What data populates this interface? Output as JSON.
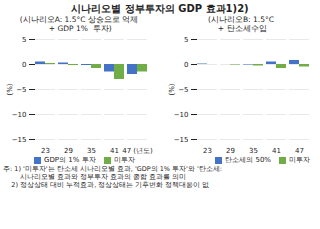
{
  "title": "시나리오별 정부투자의 GDP 효과1)2)",
  "annotations": [
    "주: 1) '미투자'는 탄소세 시나리오별 효과, 'GDP의 1% 투자'와 '탄소세:",
    "        시나리오별 효과와 정부투자 효과의 종합 효과를 의미",
    "    2) 정상상태 대비 누적효과, 정상상태는 기후변화 정책대응이 없"
  ],
  "chart_data": [
    {
      "type": "bar",
      "subtitle": [
        "(시나리오A: 1.5°C 상승으로 억제",
        " + GDP 1%  투자)"
      ],
      "categories": [
        "23",
        "29",
        "35",
        "41",
        "47 (년도)"
      ],
      "series": [
        {
          "name": "GDP의 1% 투자",
          "color": "#4472C4",
          "values": [
            0.5,
            0.3,
            -0.2,
            -1.5,
            -2.0
          ]
        },
        {
          "name": "미투자",
          "color": "#70AD47",
          "values": [
            0.2,
            -0.2,
            -0.8,
            -3.0,
            -1.5
          ]
        }
      ],
      "ylabel": "(%)",
      "ylim": [
        -15,
        5
      ],
      "yticks": [
        -15,
        -10,
        -5,
        0,
        5
      ],
      "grid": true,
      "legend": "lower left"
    },
    {
      "type": "bar",
      "subtitle": [
        "(시나리오B: 1.5°C",
        " + 탄소세수입"
      ],
      "categories": [
        "23",
        "29",
        "35",
        "41",
        "47"
      ],
      "series": [
        {
          "name": "탄소세의 50%",
          "color": "#4472C4",
          "values": [
            0.1,
            0.0,
            -0.1,
            0.5,
            0.8
          ]
        },
        {
          "name": "미투자",
          "color": "#70AD47",
          "values": [
            0.0,
            -0.1,
            -0.3,
            -0.8,
            -0.5
          ]
        }
      ],
      "ylabel": "(%)",
      "ylim": [
        -15,
        5
      ],
      "yticks": [
        -15,
        -10,
        -5,
        0,
        5
      ],
      "grid": true,
      "legend": "lower right"
    }
  ]
}
